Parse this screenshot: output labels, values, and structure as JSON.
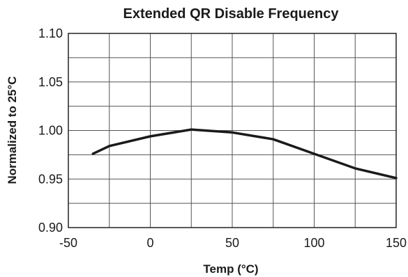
{
  "chart_data": {
    "type": "line",
    "title": "Extended QR Disable Frequency",
    "xlabel": "Temp (°C)",
    "ylabel": "Normalized to 25°C",
    "xlim": [
      -50,
      150
    ],
    "ylim": [
      0.9,
      1.1
    ],
    "x_ticks": [
      -50,
      0,
      50,
      100,
      150
    ],
    "x_tick_labels": [
      "-50",
      "0",
      "50",
      "100",
      "150"
    ],
    "x_grid": [
      -50,
      -25,
      0,
      25,
      50,
      75,
      100,
      125,
      150
    ],
    "y_ticks": [
      0.9,
      0.95,
      1.0,
      1.05,
      1.1
    ],
    "y_tick_labels": [
      "0.90",
      "0.95",
      "1.00",
      "1.05",
      "1.10"
    ],
    "y_grid": [
      0.9,
      0.925,
      0.95,
      0.975,
      1.0,
      1.025,
      1.05,
      1.075,
      1.1
    ],
    "grid": true,
    "series": [
      {
        "x": [
          -35,
          -25,
          0,
          25,
          50,
          75,
          100,
          125,
          150
        ],
        "y": [
          0.976,
          0.984,
          0.994,
          1.001,
          0.998,
          0.991,
          0.976,
          0.961,
          0.951
        ]
      }
    ]
  }
}
